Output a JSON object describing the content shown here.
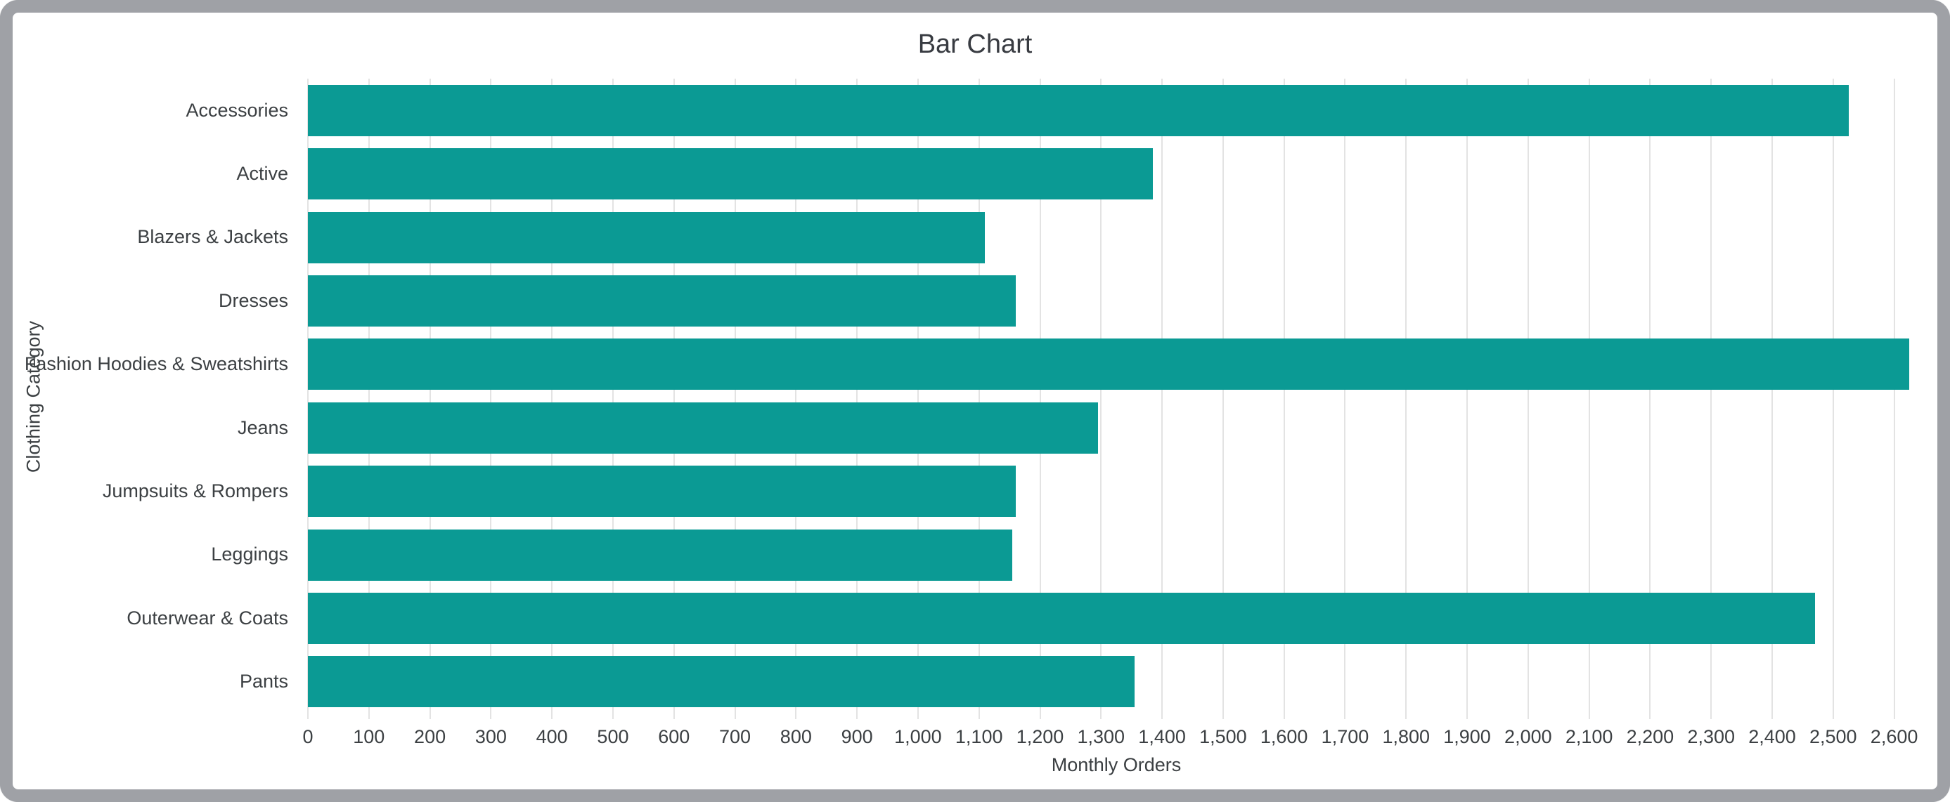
{
  "frame": {
    "border_color": "#9fa1a6",
    "background": "#ffffff"
  },
  "chart_data": {
    "type": "bar",
    "orientation": "horizontal",
    "title": "Bar Chart",
    "xlabel": "Monthly Orders",
    "ylabel": "Clothing Category",
    "categories": [
      "Accessories",
      "Active",
      "Blazers & Jackets",
      "Dresses",
      "Fashion Hoodies & Sweatshirts",
      "Jeans",
      "Jumpsuits & Rompers",
      "Leggings",
      "Outerwear & Coats",
      "Pants"
    ],
    "values": [
      2525,
      1385,
      1110,
      1160,
      2625,
      1295,
      1160,
      1155,
      2470,
      1355
    ],
    "xlim": [
      0,
      2650
    ],
    "xtick_step": 100,
    "xtick_labels": [
      "0",
      "100",
      "200",
      "300",
      "400",
      "500",
      "600",
      "700",
      "800",
      "900",
      "1,000",
      "1,100",
      "1,200",
      "1,300",
      "1,400",
      "1,500",
      "1,600",
      "1,700",
      "1,800",
      "1,900",
      "2,000",
      "2,100",
      "2,200",
      "2,300",
      "2,400",
      "2,500",
      "2,600"
    ],
    "grid": "vertical-only",
    "legend": "none",
    "bar_color": "#0b9a94",
    "gridline_color": "#e3e3e3",
    "text_color": "#3c4043"
  }
}
